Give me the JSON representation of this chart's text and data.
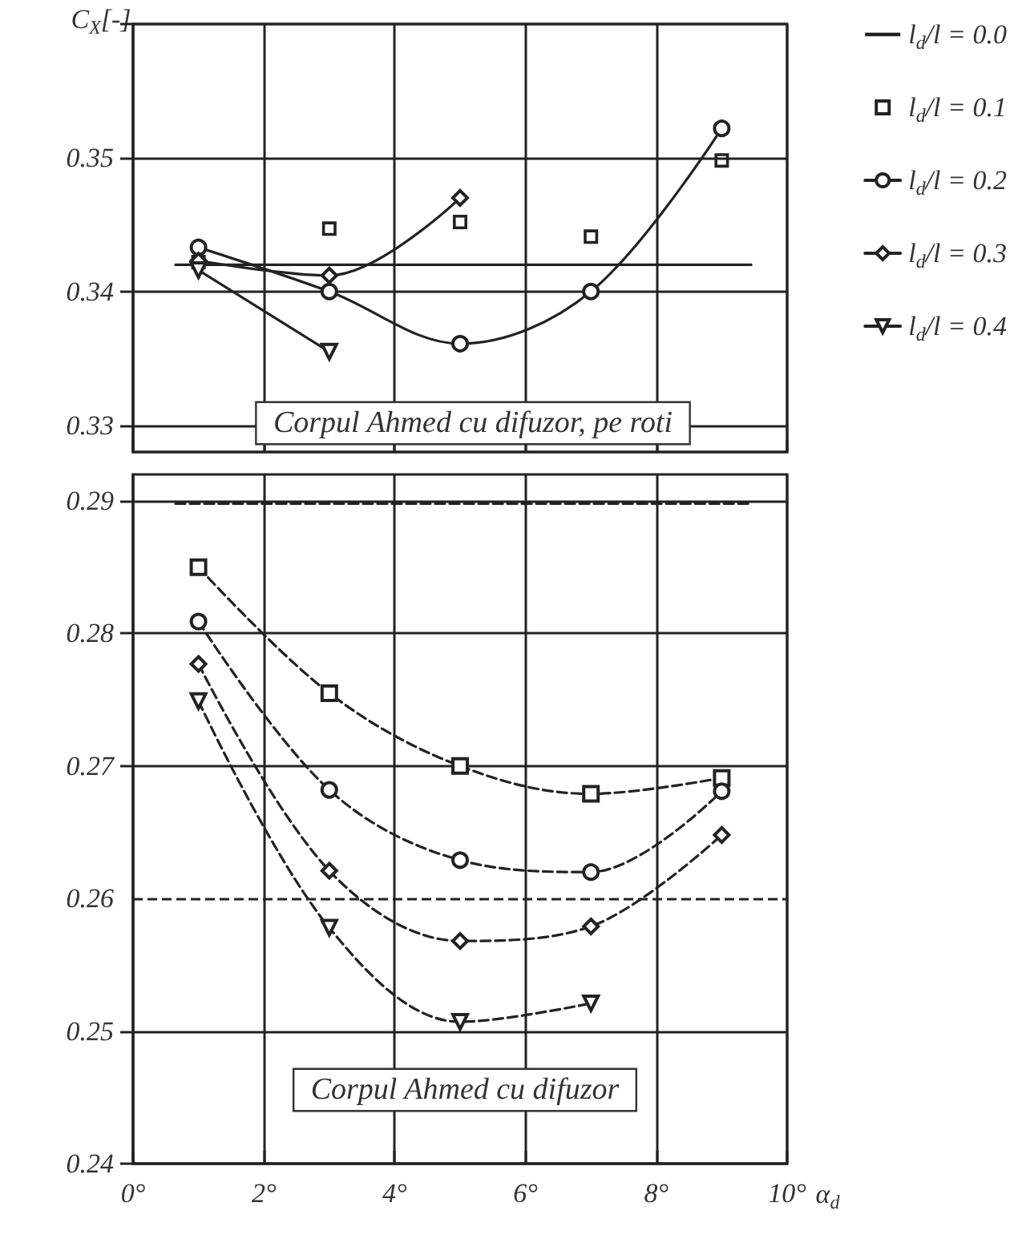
{
  "chart_data": [
    {
      "type": "line",
      "ylabel": "C$_{X}$[-]",
      "xlim": [
        0,
        10
      ],
      "xticks": [
        0,
        2,
        4,
        6,
        8,
        10
      ],
      "ylim": [
        0.328,
        0.36
      ],
      "yticks": [
        0.33,
        0.34,
        0.35,
        {
          "value": 0.36,
          "label": null
        }
      ],
      "tick_labels": "y",
      "grid": true,
      "legend": "right",
      "annotations": [
        "Corpul Ahmed cu difuzor, pe roti"
      ],
      "series": [
        {
          "name": "l$_{d}$/l = 0.0",
          "color": "#222222",
          "marker": "none",
          "line_style": "solid",
          "x": [
            0.65,
            9.45
          ],
          "values": [
            0.342,
            0.342
          ]
        },
        {
          "name": "l$_{d}$/l = 0.1",
          "type": "scatter",
          "color": "#222222",
          "marker": "square",
          "x": [
            1,
            3,
            5,
            7,
            9
          ],
          "values": [
            0.3422,
            0.3447,
            0.3452,
            0.3441,
            0.3498
          ]
        },
        {
          "name": "l$_{d}$/l = 0.2",
          "color": "#222222",
          "marker": "circle",
          "line_style": "solid",
          "x": [
            1,
            3,
            5,
            7,
            9
          ],
          "values": [
            0.3433,
            0.34,
            0.3361,
            0.34,
            0.3522
          ]
        },
        {
          "name": "l$_{d}$/l = 0.3",
          "color": "#222222",
          "marker": "diamond",
          "line_style": "solid",
          "x": [
            1,
            3,
            5
          ],
          "values": [
            0.3423,
            0.3412,
            0.347
          ]
        },
        {
          "name": "l$_{d}$/l = 0.4",
          "color": "#222222",
          "marker": "triangle",
          "line_style": "solid",
          "x": [
            1,
            3
          ],
          "values": [
            0.3416,
            0.3355
          ]
        }
      ]
    },
    {
      "type": "line",
      "xlabel": "α$_{d}$",
      "xlim": [
        0,
        10
      ],
      "xticks": [
        {
          "value": 0,
          "label": "0°"
        },
        {
          "value": 2,
          "label": "2°"
        },
        {
          "value": 4,
          "label": "4°"
        },
        {
          "value": 6,
          "label": "6°"
        },
        {
          "value": 8,
          "label": "8°"
        },
        {
          "value": 10,
          "label": "10°"
        }
      ],
      "ylim": [
        0.24,
        0.292
      ],
      "yticks": [
        0.24,
        0.25,
        0.26,
        0.27,
        0.28,
        0.29
      ],
      "grid": true,
      "annotations": [
        "Corpul Ahmed cu difuzor"
      ],
      "ref_lines": [
        {
          "axis": "y",
          "value": 0.26,
          "line_style": "dashed",
          "color": "#222222"
        }
      ],
      "series": [
        {
          "color": "#222222",
          "marker": "none",
          "line_style": "dashed",
          "x": [
            0.65,
            9.45
          ],
          "values": [
            0.2898,
            0.2898
          ]
        },
        {
          "color": "#222222",
          "marker": "square",
          "line_style": "dashed",
          "x": [
            1,
            3,
            5,
            7,
            9
          ],
          "values": [
            0.285,
            0.2755,
            0.27,
            0.2679,
            0.2691
          ]
        },
        {
          "color": "#222222",
          "marker": "circle",
          "line_style": "dashed",
          "x": [
            1,
            3,
            5,
            7,
            9
          ],
          "values": [
            0.2809,
            0.2682,
            0.2629,
            0.262,
            0.2681
          ]
        },
        {
          "color": "#222222",
          "marker": "diamond",
          "line_style": "dashed",
          "x": [
            1,
            3,
            5,
            7,
            9
          ],
          "values": [
            0.2777,
            0.2621,
            0.2568,
            0.2579,
            0.2648
          ]
        },
        {
          "color": "#222222",
          "marker": "triangle",
          "line_style": "dashed",
          "x": [
            1,
            3,
            5,
            7
          ],
          "values": [
            0.2749,
            0.2578,
            0.2507,
            0.2521
          ]
        }
      ]
    }
  ]
}
